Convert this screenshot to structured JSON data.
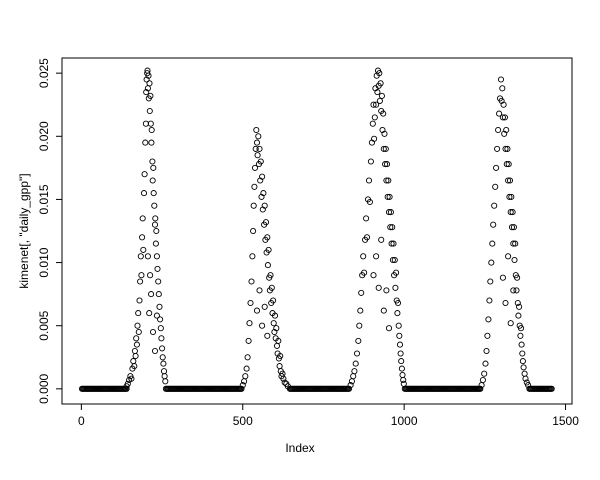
{
  "figure": {
    "background": "#ffffff",
    "foreground": "#000000"
  },
  "chart_data": {
    "type": "scatter",
    "title": "",
    "xlabel": "Index",
    "ylabel": "kimenet[, \"daily_gpp\"]",
    "marker": "open-circle",
    "point_color": "#000000",
    "grid": false,
    "box": true,
    "xlim": [
      -60,
      1520
    ],
    "ylim": [
      -0.0012,
      0.0262
    ],
    "x_ticks": [
      0,
      500,
      1000,
      1500
    ],
    "x_tick_labels": [
      "0",
      "500",
      "1000",
      "1500"
    ],
    "y_ticks": [
      0.0,
      0.005,
      0.01,
      0.015,
      0.02,
      0.025
    ],
    "y_tick_labels": [
      "0.000",
      "0.005",
      "0.010",
      "0.015",
      "0.020",
      "0.025"
    ],
    "zero_value": 0.0,
    "zero_step": 3,
    "zero_segments": [
      [
        2,
        140
      ],
      [
        262,
        498
      ],
      [
        646,
        830
      ],
      [
        1002,
        1238
      ],
      [
        1388,
        1458
      ]
    ],
    "points": [
      [
        140,
        0.0002
      ],
      [
        144,
        0.0004
      ],
      [
        148,
        0.0007
      ],
      [
        152,
        0.001
      ],
      [
        155,
        0.0008
      ],
      [
        158,
        0.0016
      ],
      [
        161,
        0.0022
      ],
      [
        164,
        0.0018
      ],
      [
        166,
        0.003
      ],
      [
        168,
        0.0026
      ],
      [
        170,
        0.004
      ],
      [
        172,
        0.0035
      ],
      [
        174,
        0.005
      ],
      [
        176,
        0.006
      ],
      [
        178,
        0.0045
      ],
      [
        180,
        0.007
      ],
      [
        182,
        0.0085
      ],
      [
        184,
        0.0105
      ],
      [
        186,
        0.009
      ],
      [
        188,
        0.012
      ],
      [
        190,
        0.0135
      ],
      [
        192,
        0.011
      ],
      [
        194,
        0.0155
      ],
      [
        196,
        0.017
      ],
      [
        198,
        0.0195
      ],
      [
        200,
        0.021
      ],
      [
        201,
        0.0235
      ],
      [
        202,
        0.0245
      ],
      [
        204,
        0.025
      ],
      [
        205,
        0.0252
      ],
      [
        206,
        0.0238
      ],
      [
        208,
        0.0248
      ],
      [
        209,
        0.023
      ],
      [
        211,
        0.0242
      ],
      [
        212,
        0.022
      ],
      [
        214,
        0.0232
      ],
      [
        215,
        0.021
      ],
      [
        217,
        0.0195
      ],
      [
        218,
        0.0205
      ],
      [
        220,
        0.018
      ],
      [
        221,
        0.0165
      ],
      [
        223,
        0.0175
      ],
      [
        224,
        0.0155
      ],
      [
        226,
        0.0145
      ],
      [
        228,
        0.013
      ],
      [
        229,
        0.0135
      ],
      [
        231,
        0.0115
      ],
      [
        232,
        0.0125
      ],
      [
        234,
        0.0105
      ],
      [
        236,
        0.0095
      ],
      [
        238,
        0.0085
      ],
      [
        240,
        0.0075
      ],
      [
        242,
        0.0065
      ],
      [
        244,
        0.0055
      ],
      [
        246,
        0.0048
      ],
      [
        248,
        0.004
      ],
      [
        250,
        0.0032
      ],
      [
        252,
        0.0025
      ],
      [
        254,
        0.002
      ],
      [
        256,
        0.0014
      ],
      [
        258,
        0.001
      ],
      [
        260,
        0.0006
      ],
      [
        210,
        0.006
      ],
      [
        216,
        0.0075
      ],
      [
        222,
        0.0045
      ],
      [
        228,
        0.003
      ],
      [
        234,
        0.0058
      ],
      [
        206,
        0.0105
      ],
      [
        213,
        0.009
      ],
      [
        500,
        0.0003
      ],
      [
        504,
        0.0006
      ],
      [
        508,
        0.001
      ],
      [
        512,
        0.0016
      ],
      [
        515,
        0.0025
      ],
      [
        518,
        0.0038
      ],
      [
        521,
        0.0052
      ],
      [
        524,
        0.0068
      ],
      [
        527,
        0.0085
      ],
      [
        530,
        0.0105
      ],
      [
        532,
        0.0125
      ],
      [
        534,
        0.0145
      ],
      [
        536,
        0.016
      ],
      [
        538,
        0.0175
      ],
      [
        540,
        0.019
      ],
      [
        542,
        0.0205
      ],
      [
        544,
        0.0195
      ],
      [
        546,
        0.0185
      ],
      [
        548,
        0.02
      ],
      [
        550,
        0.0178
      ],
      [
        552,
        0.019
      ],
      [
        554,
        0.0165
      ],
      [
        556,
        0.018
      ],
      [
        558,
        0.0152
      ],
      [
        560,
        0.0168
      ],
      [
        562,
        0.0142
      ],
      [
        564,
        0.0155
      ],
      [
        566,
        0.013
      ],
      [
        568,
        0.0145
      ],
      [
        570,
        0.0118
      ],
      [
        572,
        0.0132
      ],
      [
        574,
        0.0108
      ],
      [
        576,
        0.012
      ],
      [
        578,
        0.0098
      ],
      [
        580,
        0.011
      ],
      [
        582,
        0.0088
      ],
      [
        584,
        0.0078
      ],
      [
        586,
        0.009
      ],
      [
        588,
        0.0068
      ],
      [
        590,
        0.008
      ],
      [
        592,
        0.006
      ],
      [
        594,
        0.007
      ],
      [
        596,
        0.0052
      ],
      [
        598,
        0.0045
      ],
      [
        600,
        0.0058
      ],
      [
        602,
        0.004
      ],
      [
        604,
        0.0048
      ],
      [
        606,
        0.0034
      ],
      [
        608,
        0.0028
      ],
      [
        610,
        0.0038
      ],
      [
        612,
        0.0024
      ],
      [
        614,
        0.0018
      ],
      [
        616,
        0.0026
      ],
      [
        618,
        0.0014
      ],
      [
        620,
        0.001
      ],
      [
        623,
        0.0012
      ],
      [
        626,
        0.0008
      ],
      [
        630,
        0.0005
      ],
      [
        635,
        0.0004
      ],
      [
        640,
        0.0002
      ],
      [
        544,
        0.0062
      ],
      [
        552,
        0.0078
      ],
      [
        560,
        0.005
      ],
      [
        568,
        0.0065
      ],
      [
        576,
        0.0042
      ],
      [
        834,
        0.0003
      ],
      [
        838,
        0.0006
      ],
      [
        842,
        0.001
      ],
      [
        846,
        0.0014
      ],
      [
        850,
        0.002
      ],
      [
        854,
        0.0028
      ],
      [
        858,
        0.0038
      ],
      [
        861,
        0.005
      ],
      [
        864,
        0.0062
      ],
      [
        867,
        0.0076
      ],
      [
        870,
        0.009
      ],
      [
        873,
        0.0105
      ],
      [
        876,
        0.0092
      ],
      [
        879,
        0.0118
      ],
      [
        882,
        0.0135
      ],
      [
        885,
        0.012
      ],
      [
        888,
        0.015
      ],
      [
        891,
        0.0165
      ],
      [
        894,
        0.0148
      ],
      [
        897,
        0.018
      ],
      [
        900,
        0.0195
      ],
      [
        903,
        0.021
      ],
      [
        905,
        0.0225
      ],
      [
        907,
        0.0198
      ],
      [
        909,
        0.0215
      ],
      [
        911,
        0.0238
      ],
      [
        913,
        0.0225
      ],
      [
        915,
        0.0248
      ],
      [
        917,
        0.0235
      ],
      [
        919,
        0.0252
      ],
      [
        921,
        0.024
      ],
      [
        923,
        0.025
      ],
      [
        925,
        0.0228
      ],
      [
        927,
        0.0242
      ],
      [
        929,
        0.022
      ],
      [
        931,
        0.0232
      ],
      [
        933,
        0.0205
      ],
      [
        935,
        0.0218
      ],
      [
        937,
        0.019
      ],
      [
        939,
        0.0202
      ],
      [
        941,
        0.0178
      ],
      [
        943,
        0.019
      ],
      [
        945,
        0.0165
      ],
      [
        947,
        0.0178
      ],
      [
        949,
        0.0152
      ],
      [
        951,
        0.0165
      ],
      [
        953,
        0.014
      ],
      [
        955,
        0.0152
      ],
      [
        957,
        0.0128
      ],
      [
        959,
        0.014
      ],
      [
        961,
        0.0115
      ],
      [
        963,
        0.0128
      ],
      [
        965,
        0.0102
      ],
      [
        967,
        0.0115
      ],
      [
        969,
        0.009
      ],
      [
        971,
        0.0102
      ],
      [
        973,
        0.008
      ],
      [
        975,
        0.0092
      ],
      [
        977,
        0.007
      ],
      [
        979,
        0.006
      ],
      [
        981,
        0.0068
      ],
      [
        983,
        0.005
      ],
      [
        985,
        0.0042
      ],
      [
        987,
        0.0035
      ],
      [
        989,
        0.0028
      ],
      [
        991,
        0.0022
      ],
      [
        993,
        0.0016
      ],
      [
        995,
        0.0011
      ],
      [
        997,
        0.0007
      ],
      [
        999,
        0.0004
      ],
      [
        905,
        0.009
      ],
      [
        913,
        0.0105
      ],
      [
        921,
        0.008
      ],
      [
        929,
        0.0118
      ],
      [
        937,
        0.0062
      ],
      [
        945,
        0.0078
      ],
      [
        953,
        0.0048
      ],
      [
        1240,
        0.0003
      ],
      [
        1244,
        0.0007
      ],
      [
        1248,
        0.0012
      ],
      [
        1252,
        0.002
      ],
      [
        1255,
        0.003
      ],
      [
        1258,
        0.0042
      ],
      [
        1261,
        0.0055
      ],
      [
        1264,
        0.007
      ],
      [
        1267,
        0.0085
      ],
      [
        1270,
        0.01
      ],
      [
        1273,
        0.0115
      ],
      [
        1276,
        0.013
      ],
      [
        1279,
        0.0145
      ],
      [
        1282,
        0.016
      ],
      [
        1285,
        0.0175
      ],
      [
        1288,
        0.019
      ],
      [
        1291,
        0.0205
      ],
      [
        1294,
        0.0218
      ],
      [
        1297,
        0.023
      ],
      [
        1300,
        0.0245
      ],
      [
        1302,
        0.0228
      ],
      [
        1304,
        0.0238
      ],
      [
        1306,
        0.0215
      ],
      [
        1308,
        0.0225
      ],
      [
        1310,
        0.0202
      ],
      [
        1312,
        0.0215
      ],
      [
        1314,
        0.019
      ],
      [
        1316,
        0.0205
      ],
      [
        1318,
        0.0178
      ],
      [
        1320,
        0.019
      ],
      [
        1322,
        0.0165
      ],
      [
        1324,
        0.0178
      ],
      [
        1326,
        0.0152
      ],
      [
        1328,
        0.0165
      ],
      [
        1330,
        0.014
      ],
      [
        1332,
        0.0152
      ],
      [
        1334,
        0.0128
      ],
      [
        1336,
        0.014
      ],
      [
        1338,
        0.0115
      ],
      [
        1340,
        0.0128
      ],
      [
        1342,
        0.0102
      ],
      [
        1344,
        0.0115
      ],
      [
        1346,
        0.009
      ],
      [
        1348,
        0.0078
      ],
      [
        1350,
        0.0088
      ],
      [
        1352,
        0.0068
      ],
      [
        1354,
        0.0058
      ],
      [
        1356,
        0.0065
      ],
      [
        1358,
        0.005
      ],
      [
        1360,
        0.0042
      ],
      [
        1362,
        0.0048
      ],
      [
        1364,
        0.0035
      ],
      [
        1366,
        0.0028
      ],
      [
        1368,
        0.0022
      ],
      [
        1370,
        0.0017
      ],
      [
        1373,
        0.0012
      ],
      [
        1376,
        0.0008
      ],
      [
        1380,
        0.0005
      ],
      [
        1384,
        0.0003
      ],
      [
        1306,
        0.0088
      ],
      [
        1314,
        0.0068
      ],
      [
        1322,
        0.0105
      ],
      [
        1330,
        0.0052
      ],
      [
        1338,
        0.0078
      ]
    ]
  }
}
